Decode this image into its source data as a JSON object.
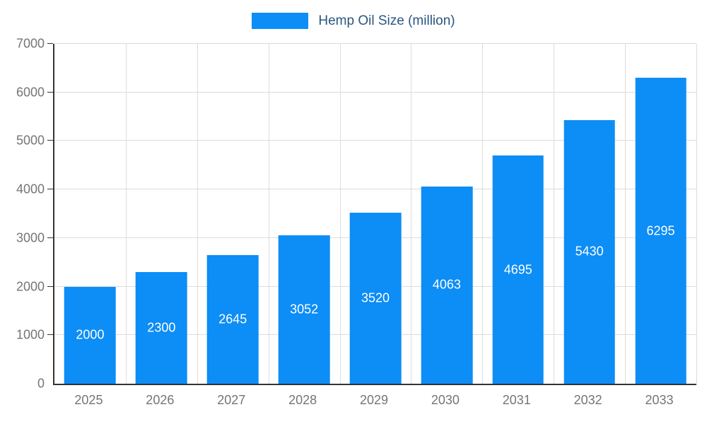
{
  "legend": {
    "label": "Hemp Oil Size (million)",
    "swatch_color": "#0d8df6"
  },
  "chart_data": {
    "type": "bar",
    "title": "Hemp Oil Size (million)",
    "categories": [
      "2025",
      "2026",
      "2027",
      "2028",
      "2029",
      "2030",
      "2031",
      "2032",
      "2033"
    ],
    "values": [
      2000,
      2300,
      2645,
      3052,
      3520,
      4063,
      4695,
      5430,
      6295
    ],
    "xlabel": "",
    "ylabel": "",
    "ylim": [
      0,
      7000
    ],
    "ytick_step": 1000,
    "ytick_labels": [
      "0",
      "1000",
      "2000",
      "3000",
      "4000",
      "5000",
      "6000",
      "7000"
    ],
    "bar_color": "#0d8df6",
    "value_label_color": "#ffffff",
    "grid": true,
    "legend_position": "top"
  }
}
